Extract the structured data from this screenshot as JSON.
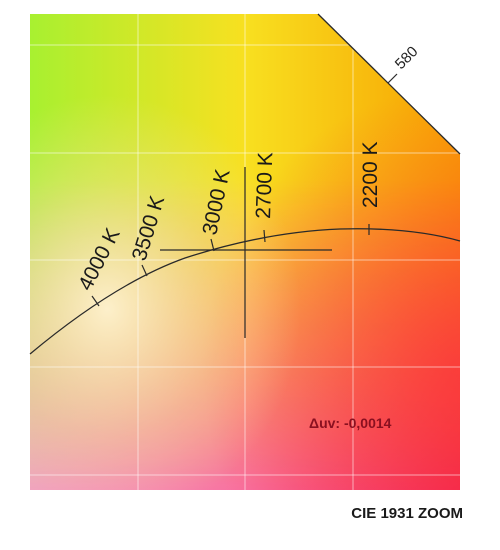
{
  "colors": {
    "top_left": "#a8f030",
    "top_right": "#f8a000",
    "bottom_left": "#f0a0c0",
    "bottom_right": "#f02850",
    "center": "#ffe0b0",
    "grid": "#ffffff",
    "locus": "#2a2a2a",
    "duv_text": "#8a1020"
  },
  "isotherms": [
    {
      "id": "4000",
      "label": "4000 K"
    },
    {
      "id": "3500",
      "label": "3500 K"
    },
    {
      "id": "3000",
      "label": "3000 K"
    },
    {
      "id": "2700",
      "label": "2700 K"
    },
    {
      "id": "2200",
      "label": "2200 K"
    }
  ],
  "spectral_locus": {
    "wavelength_label": "580"
  },
  "annotation": {
    "duv": "Δuv: -0,0014"
  },
  "footer": {
    "title": "CIE 1931 ZOOM"
  }
}
